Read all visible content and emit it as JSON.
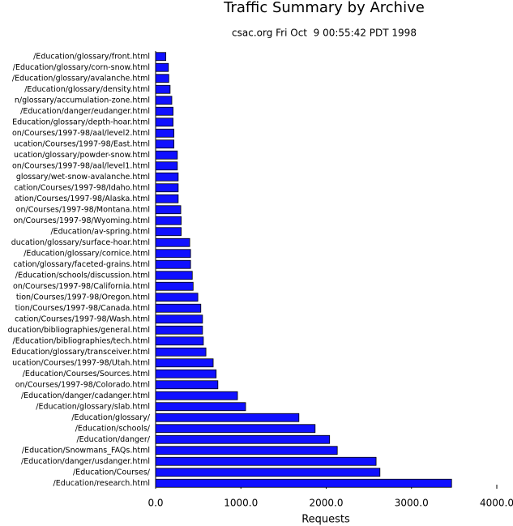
{
  "chart_data": {
    "type": "barh",
    "title": "Traffic Summary by Archive",
    "subtitle": "csac.org Fri Oct  9 00:55:42 PDT 1998",
    "x_label": "Requests",
    "categories": [
      "/Education/glossary/front.html",
      "/Education/glossary/corn-snow.html",
      "/Education/glossary/avalanche.html",
      "/Education/glossary/density.html",
      "n/glossary/accumulation-zone.html",
      "/Education/danger/eudanger.html",
      "Education/glossary/depth-hoar.html",
      "on/Courses/1997-98/aal/level2.html",
      "ucation/Courses/1997-98/East.html",
      "ucation/glossary/powder-snow.html",
      "on/Courses/1997-98/aal/level1.html",
      "glossary/wet-snow-avalanche.html",
      "cation/Courses/1997-98/Idaho.html",
      "ation/Courses/1997-98/Alaska.html",
      "on/Courses/1997-98/Montana.html",
      "on/Courses/1997-98/Wyoming.html",
      "/Education/av-spring.html",
      "ducation/glossary/surface-hoar.html",
      "/Education/glossary/cornice.html",
      "cation/glossary/faceted-grains.html",
      "/Education/schools/discussion.html",
      "on/Courses/1997-98/California.html",
      "tion/Courses/1997-98/Oregon.html",
      "tion/Courses/1997-98/Canada.html",
      "cation/Courses/1997-98/Wash.html",
      "ducation/bibliographies/general.html",
      "/Education/bibliographies/tech.html",
      "Education/glossary/transceiver.html",
      "ucation/Courses/1997-98/Utah.html",
      "/Education/Courses/Sources.html",
      "on/Courses/1997-98/Colorado.html",
      "/Education/danger/cadanger.html",
      "/Education/glossary/slab.html",
      "/Education/glossary/",
      "/Education/schools/",
      "/Education/danger/",
      "/Education/Snowmans_FAQs.html",
      "/Education/danger/usdanger.html",
      "/Education/Courses/",
      "/Education/research.html"
    ],
    "values": [
      120,
      150,
      155,
      170,
      190,
      205,
      205,
      215,
      215,
      255,
      255,
      265,
      265,
      265,
      295,
      300,
      300,
      400,
      410,
      410,
      430,
      440,
      495,
      530,
      550,
      550,
      560,
      590,
      675,
      710,
      730,
      960,
      1055,
      1680,
      1870,
      2040,
      2130,
      2585,
      2630,
      3470
    ],
    "color": "#1010ff",
    "xlim": [
      0,
      4000
    ],
    "xticks": [
      {
        "value": 0,
        "label": "0.0"
      },
      {
        "value": 1000,
        "label": "1000.0"
      },
      {
        "value": 2000,
        "label": "2000.0"
      },
      {
        "value": 3000,
        "label": "3000.0"
      },
      {
        "value": 4000,
        "label": "4000.0"
      }
    ]
  }
}
